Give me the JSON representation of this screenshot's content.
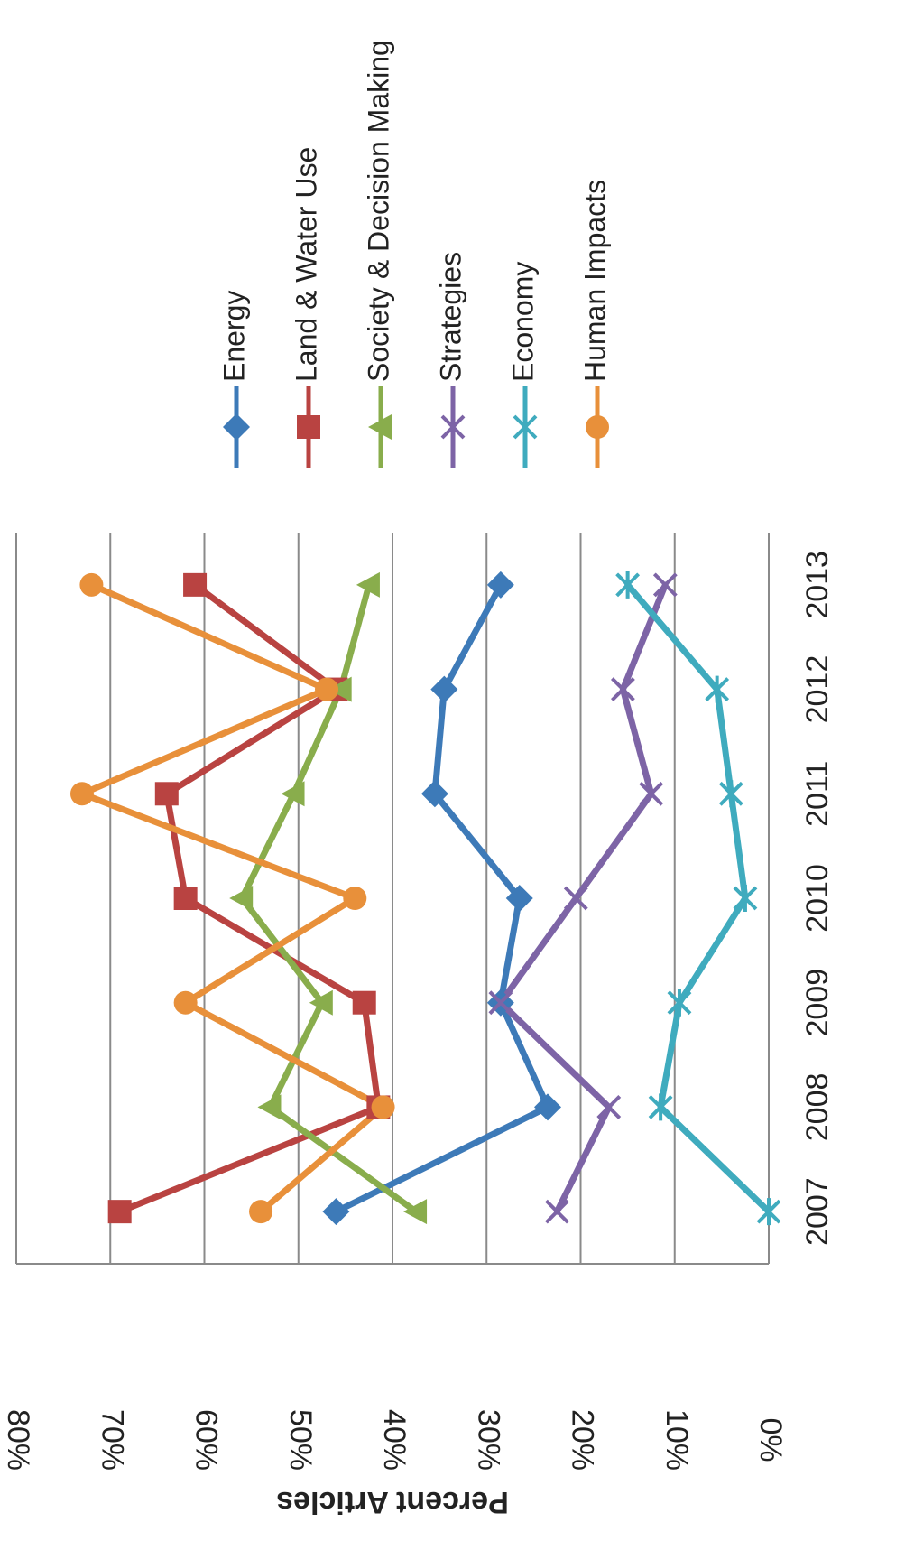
{
  "chart_data": {
    "type": "line",
    "title": "",
    "xlabel": "",
    "ylabel": "Percent Articles",
    "categories": [
      "2007",
      "2008",
      "2009",
      "2010",
      "2011",
      "2012",
      "2013"
    ],
    "ylim": [
      0,
      80
    ],
    "yticks": [
      0,
      10,
      20,
      30,
      40,
      50,
      60,
      70,
      80
    ],
    "ytick_labels": [
      "0%",
      "10%",
      "20%",
      "30%",
      "40%",
      "50%",
      "60%",
      "70%",
      "80%"
    ],
    "grid": true,
    "legend_position": "right",
    "series": [
      {
        "name": "Energy",
        "color": "#3d7ab8",
        "marker": "diamond",
        "values": [
          46,
          23.5,
          28.5,
          26.5,
          35.5,
          34.5,
          28.5
        ]
      },
      {
        "name": "Land & Water Use",
        "color": "#b94341",
        "marker": "square",
        "values": [
          69,
          41.5,
          43,
          62,
          64,
          46,
          61
        ]
      },
      {
        "name": "Society & Decision Making",
        "color": "#89ad4c",
        "marker": "triangle",
        "values": [
          37.5,
          53,
          47.5,
          56,
          50.5,
          45.5,
          42.5
        ]
      },
      {
        "name": "Strategies",
        "color": "#7d64a6",
        "marker": "x",
        "values": [
          22.5,
          17,
          28.5,
          20.5,
          12.5,
          15.5,
          11
        ]
      },
      {
        "name": "Economy",
        "color": "#3fabbe",
        "marker": "star",
        "values": [
          0,
          11.5,
          9.5,
          2.5,
          4,
          5.5,
          15
        ]
      },
      {
        "name": "Human Impacts",
        "color": "#e8903a",
        "marker": "circle",
        "values": [
          54,
          41,
          62,
          44,
          73,
          47,
          72
        ]
      }
    ]
  }
}
